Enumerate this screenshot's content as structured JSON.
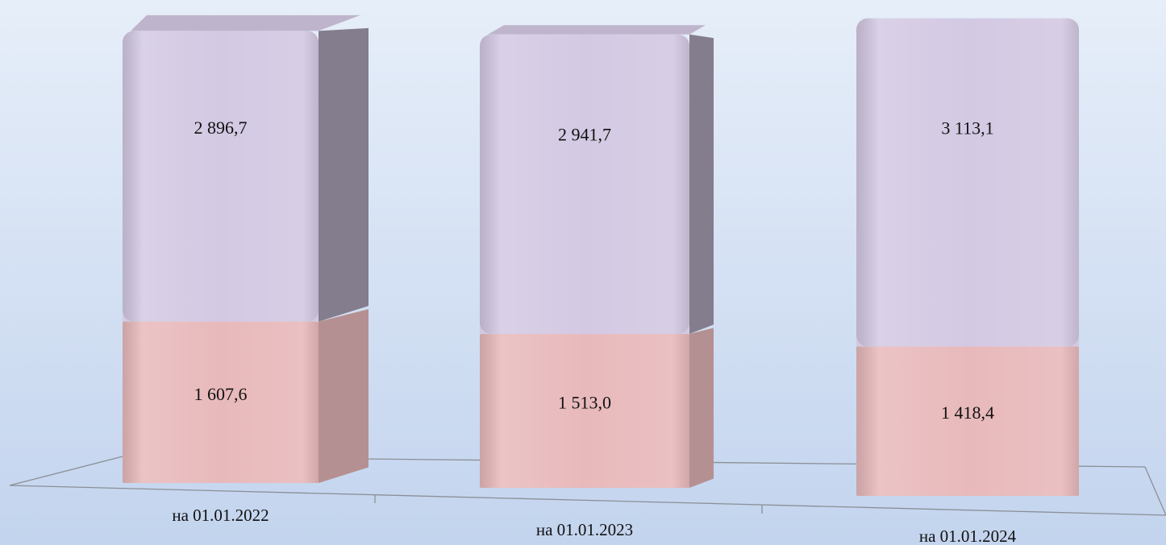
{
  "chart_data": {
    "type": "bar",
    "stacked": true,
    "categories": [
      "на 01.01.2022",
      "на 01.01.2023",
      "на 01.01.2024"
    ],
    "series": [
      {
        "color": "#e8b9bb",
        "values": [
          1607.6,
          1513.0,
          1418.4
        ],
        "value_labels": [
          "1 607,6",
          "1 513,0",
          "1 418,4"
        ]
      },
      {
        "color": "#d3c9e3",
        "values": [
          2896.7,
          2941.7,
          3113.1
        ],
        "value_labels": [
          "2 896,7",
          "2 941,7",
          "3 113,1"
        ]
      }
    ]
  }
}
